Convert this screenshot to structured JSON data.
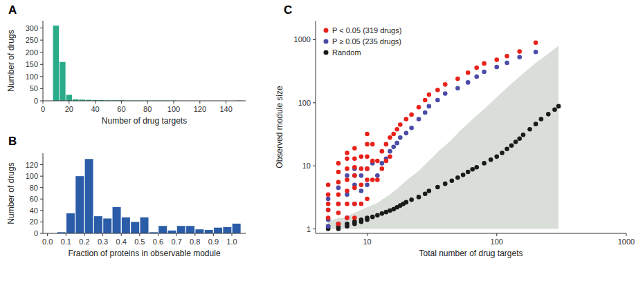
{
  "chart_data": [
    {
      "type": "bar",
      "title": "A",
      "x": [
        5,
        10,
        15,
        20,
        25,
        30,
        35,
        40,
        45,
        50,
        55,
        60,
        65,
        70,
        75,
        80,
        85,
        90,
        95,
        100,
        105,
        110,
        115,
        120,
        125,
        130,
        135,
        140,
        145,
        150
      ],
      "values": [
        0,
        310,
        160,
        25,
        6,
        5,
        4,
        3,
        3,
        2,
        2,
        2,
        1,
        1,
        1,
        1,
        1,
        1,
        1,
        1,
        0,
        0,
        0,
        0,
        0,
        0,
        0,
        0,
        0,
        1
      ],
      "color": "#2aab8a",
      "xlabel": "Number of drug targets",
      "ylabel": "Number of drugs",
      "xlim": [
        0,
        155
      ],
      "ylim": [
        0,
        330
      ],
      "xticks": [
        0,
        20,
        40,
        60,
        80,
        100,
        120,
        140
      ],
      "yticks": [
        0,
        50,
        100,
        150,
        200,
        250,
        300
      ],
      "grid": false
    },
    {
      "type": "bar",
      "title": "B",
      "x": [
        0.025,
        0.075,
        0.125,
        0.175,
        0.225,
        0.275,
        0.325,
        0.375,
        0.425,
        0.475,
        0.525,
        0.575,
        0.625,
        0.675,
        0.725,
        0.775,
        0.825,
        0.875,
        0.925,
        0.975,
        1.025
      ],
      "values": [
        0,
        2,
        35,
        100,
        130,
        30,
        26,
        46,
        28,
        20,
        28,
        2,
        13,
        5,
        13,
        13,
        7,
        6,
        10,
        11,
        17
      ],
      "color": "#2a5ca8",
      "xlabel": "Fraction of proteins in observable module",
      "ylabel": "Number of drugs",
      "xlim": [
        -0.025,
        1.075
      ],
      "ylim": [
        0,
        140
      ],
      "xticks": [
        {
          "value": 0,
          "label": "0.0"
        },
        0.1,
        0.2,
        0.3,
        0.4,
        0.5,
        0.6,
        0.7,
        0.8,
        0.9,
        {
          "value": 1,
          "label": "1.0"
        }
      ],
      "yticks": [
        0,
        20,
        40,
        60,
        80,
        100,
        120
      ],
      "grid": false
    },
    {
      "type": "scatter",
      "title": "C",
      "log": true,
      "xlabel": "Total number of drug targets",
      "ylabel": "Observed module size",
      "xlim": [
        4,
        1000
      ],
      "ylim": [
        0.85,
        2000
      ],
      "xticks": [
        10,
        100,
        1000
      ],
      "yticks": [
        1,
        10,
        100,
        1000
      ],
      "legend": "upper left",
      "grid": false,
      "series": [
        {
          "name": "P < 0.05 (319 drugs)",
          "color": "#e8221a",
          "x": [
            5,
            5,
            5,
            5,
            5,
            6,
            6,
            6,
            6,
            6,
            6,
            6,
            7,
            7,
            7,
            7,
            7,
            7,
            7,
            8,
            8,
            8,
            8,
            8,
            8,
            8,
            9,
            9,
            9,
            9,
            10,
            10,
            10,
            10,
            10,
            10,
            11,
            11,
            11,
            12,
            12,
            13,
            13,
            14,
            14,
            15,
            15,
            16,
            17,
            18,
            20,
            22,
            25,
            28,
            30,
            35,
            40,
            50,
            60,
            70,
            80,
            100,
            120,
            150,
            200
          ],
          "values": [
            1.5,
            2.0,
            2.5,
            3.5,
            5.0,
            1.2,
            1.8,
            2.5,
            3.5,
            5.5,
            8.0,
            11.0,
            1.5,
            2.5,
            4.0,
            6.0,
            9.0,
            13.0,
            16.0,
            1.5,
            2.5,
            4.5,
            7.0,
            9.5,
            13.0,
            19.0,
            2.5,
            5.0,
            9.0,
            14.0,
            3.0,
            6.0,
            9.0,
            14.0,
            22.0,
            32.0,
            6.0,
            12.0,
            22.0,
            6.0,
            12.0,
            9.0,
            17.0,
            12.0,
            22.0,
            14.0,
            28.0,
            32.0,
            38.0,
            45.0,
            55.0,
            65.0,
            85.0,
            110.0,
            135.0,
            160.0,
            195.0,
            240.0,
            300.0,
            360.0,
            420.0,
            480.0,
            550.0,
            650.0,
            900.0
          ]
        },
        {
          "name": "P ≥ 0.05 (235 drugs)",
          "color": "#4b4ba8",
          "x": [
            5,
            5,
            5,
            5,
            6,
            6,
            6,
            7,
            7,
            7,
            8,
            8,
            8,
            8,
            9,
            9,
            10,
            10,
            11,
            12,
            13,
            14,
            15,
            16,
            17,
            18,
            20,
            22,
            25,
            28,
            30,
            35,
            40,
            50,
            60,
            70,
            80,
            100,
            120,
            150,
            200
          ],
          "values": [
            1.1,
            1.4,
            2.0,
            3.0,
            1.2,
            2.5,
            4.5,
            1.5,
            3.5,
            7.0,
            2.5,
            5.0,
            7.0,
            9.0,
            4.0,
            7.0,
            5.0,
            9.0,
            11.0,
            7.0,
            11.0,
            13.0,
            17.0,
            20.0,
            23.0,
            28.0,
            33.0,
            40.0,
            55.0,
            70.0,
            88.0,
            110.0,
            140.0,
            170.0,
            210.0,
            260.0,
            310.0,
            370.0,
            430.0,
            530.0,
            640.0
          ]
        },
        {
          "name": "Random",
          "color": "#1a1a1a",
          "x": [
            5,
            5,
            6,
            6,
            7,
            7,
            8,
            8,
            9,
            9,
            10,
            10,
            11,
            12,
            13,
            14,
            15,
            16,
            17,
            18,
            19,
            20,
            22,
            25,
            28,
            30,
            35,
            40,
            45,
            50,
            55,
            60,
            65,
            70,
            80,
            90,
            100,
            110,
            120,
            130,
            140,
            150,
            160,
            180,
            200,
            220,
            250,
            280,
            300
          ],
          "values": [
            1.0,
            1.1,
            1.0,
            1.1,
            1.1,
            1.2,
            1.2,
            1.3,
            1.3,
            1.4,
            1.4,
            1.5,
            1.55,
            1.65,
            1.75,
            1.85,
            1.95,
            2.05,
            2.2,
            2.35,
            2.5,
            2.65,
            2.9,
            3.2,
            3.6,
            4.0,
            4.6,
            5.2,
            5.8,
            6.5,
            7.2,
            8.0,
            8.8,
            9.5,
            11.0,
            12.5,
            14.0,
            16.0,
            18.5,
            21.0,
            24.0,
            27.0,
            31.0,
            38.0,
            46.0,
            55.0,
            66.0,
            78.0,
            88.0
          ]
        },
        {
          "type": "area",
          "color": "#c0c8c0",
          "x": [
            5,
            5.5,
            6,
            6.5,
            7,
            7.5,
            8,
            8.5,
            9,
            9.5,
            10,
            11,
            12,
            13,
            14,
            15,
            16,
            17,
            18,
            19,
            20,
            22,
            24,
            26,
            28,
            30,
            33,
            36,
            40,
            44,
            48,
            52,
            58,
            64,
            70,
            78,
            86,
            95,
            105,
            115,
            130,
            150,
            200,
            250,
            300
          ],
          "values": [
            1.4,
            1.4,
            1.5,
            1.5,
            1.6,
            1.7,
            1.8,
            1.9,
            2.0,
            2.1,
            2.2,
            2.4,
            2.6,
            2.9,
            3.2,
            3.5,
            3.9,
            4.3,
            4.8,
            5.3,
            5.8,
            6.8,
            7.8,
            9.0,
            10.5,
            12.0,
            14.5,
            17.5,
            21.0,
            25.0,
            30.0,
            36.0,
            44.0,
            53.0,
            63.0,
            76.0,
            92.0,
            110.0,
            135.0,
            160.0,
            200.0,
            260.0,
            430.0,
            600.0,
            800.0
          ],
          "lower": [
            1.0,
            1.0,
            1.0,
            1.0,
            1.0,
            1.0,
            1.0,
            1.0,
            1.0,
            1.0,
            1.0,
            1.0,
            1.0,
            1.0,
            1.0,
            1.0,
            1.0,
            1.0,
            1.0,
            1.0,
            1.0,
            1.0,
            1.0,
            1.0,
            1.0,
            1.0,
            1.0,
            1.0,
            1.0,
            1.0,
            1.0,
            1.0,
            1.0,
            1.0,
            1.0,
            1.0,
            1.0,
            1.0,
            1.0,
            1.0,
            1.0,
            1.0,
            1.0,
            1.0,
            1.0
          ]
        }
      ]
    }
  ]
}
